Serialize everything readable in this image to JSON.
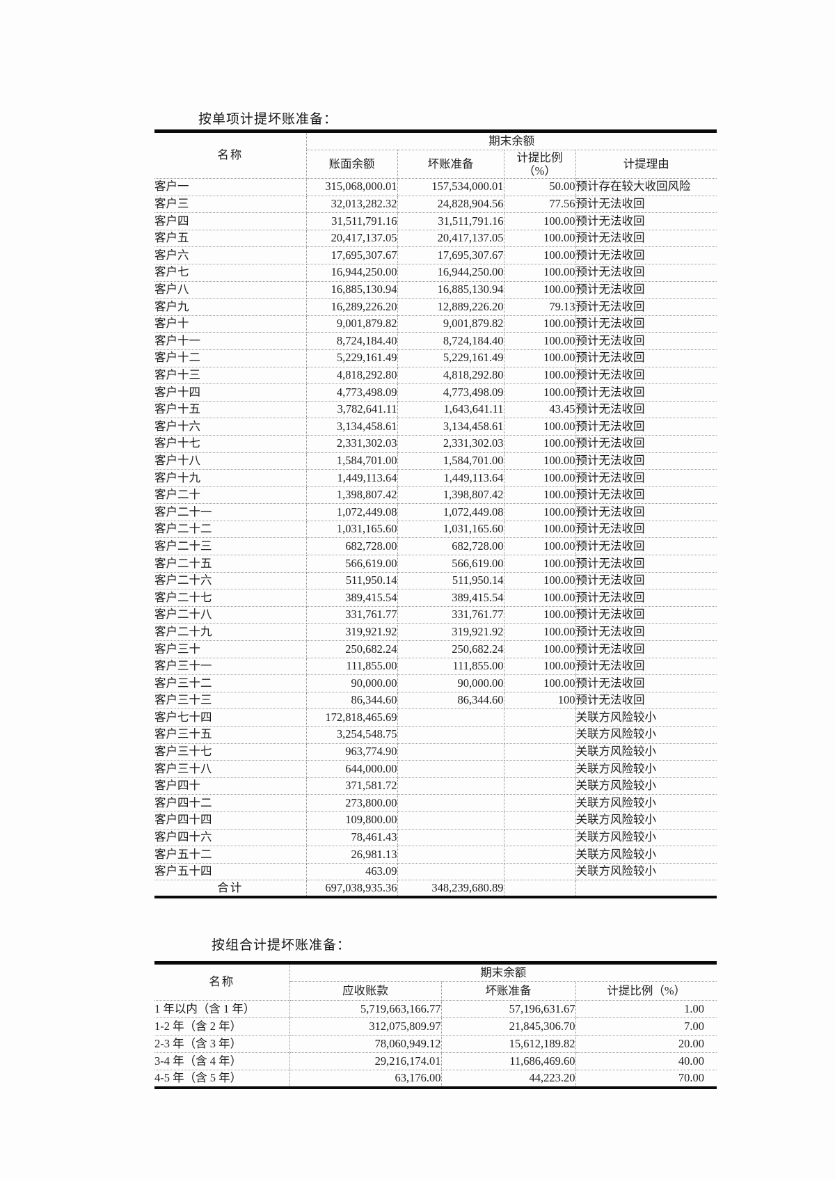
{
  "table1": {
    "title": "按单项计提坏账准备：",
    "header": {
      "name": "名称",
      "period_group": "期末余额",
      "book_balance": "账面余额",
      "bad_debt": "坏账准备",
      "ratio_label": "计提比例",
      "ratio_unit": "（%）",
      "reason": "计提理由"
    },
    "rows": [
      {
        "name": "客户一",
        "book": "315,068,000.01",
        "bad": "157,534,000.01",
        "ratio": "50.00",
        "reason": "预计存在较大收回风险"
      },
      {
        "name": "客户三",
        "book": "32,013,282.32",
        "bad": "24,828,904.56",
        "ratio": "77.56",
        "reason": "预计无法收回"
      },
      {
        "name": "客户四",
        "book": "31,511,791.16",
        "bad": "31,511,791.16",
        "ratio": "100.00",
        "reason": "预计无法收回"
      },
      {
        "name": "客户五",
        "book": "20,417,137.05",
        "bad": "20,417,137.05",
        "ratio": "100.00",
        "reason": "预计无法收回"
      },
      {
        "name": "客户六",
        "book": "17,695,307.67",
        "bad": "17,695,307.67",
        "ratio": "100.00",
        "reason": "预计无法收回"
      },
      {
        "name": "客户七",
        "book": "16,944,250.00",
        "bad": "16,944,250.00",
        "ratio": "100.00",
        "reason": "预计无法收回"
      },
      {
        "name": "客户八",
        "book": "16,885,130.94",
        "bad": "16,885,130.94",
        "ratio": "100.00",
        "reason": "预计无法收回"
      },
      {
        "name": "客户九",
        "book": "16,289,226.20",
        "bad": "12,889,226.20",
        "ratio": "79.13",
        "reason": "预计无法收回"
      },
      {
        "name": "客户十",
        "book": "9,001,879.82",
        "bad": "9,001,879.82",
        "ratio": "100.00",
        "reason": "预计无法收回"
      },
      {
        "name": "客户十一",
        "book": "8,724,184.40",
        "bad": "8,724,184.40",
        "ratio": "100.00",
        "reason": "预计无法收回"
      },
      {
        "name": "客户十二",
        "book": "5,229,161.49",
        "bad": "5,229,161.49",
        "ratio": "100.00",
        "reason": "预计无法收回"
      },
      {
        "name": "客户十三",
        "book": "4,818,292.80",
        "bad": "4,818,292.80",
        "ratio": "100.00",
        "reason": "预计无法收回"
      },
      {
        "name": "客户十四",
        "book": "4,773,498.09",
        "bad": "4,773,498.09",
        "ratio": "100.00",
        "reason": "预计无法收回"
      },
      {
        "name": "客户十五",
        "book": "3,782,641.11",
        "bad": "1,643,641.11",
        "ratio": "43.45",
        "reason": "预计无法收回"
      },
      {
        "name": "客户十六",
        "book": "3,134,458.61",
        "bad": "3,134,458.61",
        "ratio": "100.00",
        "reason": "预计无法收回"
      },
      {
        "name": "客户十七",
        "book": "2,331,302.03",
        "bad": "2,331,302.03",
        "ratio": "100.00",
        "reason": "预计无法收回"
      },
      {
        "name": "客户十八",
        "book": "1,584,701.00",
        "bad": "1,584,701.00",
        "ratio": "100.00",
        "reason": "预计无法收回"
      },
      {
        "name": "客户十九",
        "book": "1,449,113.64",
        "bad": "1,449,113.64",
        "ratio": "100.00",
        "reason": "预计无法收回"
      },
      {
        "name": "客户二十",
        "book": "1,398,807.42",
        "bad": "1,398,807.42",
        "ratio": "100.00",
        "reason": "预计无法收回"
      },
      {
        "name": "客户二十一",
        "book": "1,072,449.08",
        "bad": "1,072,449.08",
        "ratio": "100.00",
        "reason": "预计无法收回"
      },
      {
        "name": "客户二十二",
        "book": "1,031,165.60",
        "bad": "1,031,165.60",
        "ratio": "100.00",
        "reason": "预计无法收回"
      },
      {
        "name": "客户二十三",
        "book": "682,728.00",
        "bad": "682,728.00",
        "ratio": "100.00",
        "reason": "预计无法收回"
      },
      {
        "name": "客户二十五",
        "book": "566,619.00",
        "bad": "566,619.00",
        "ratio": "100.00",
        "reason": "预计无法收回"
      },
      {
        "name": "客户二十六",
        "book": "511,950.14",
        "bad": "511,950.14",
        "ratio": "100.00",
        "reason": "预计无法收回"
      },
      {
        "name": "客户二十七",
        "book": "389,415.54",
        "bad": "389,415.54",
        "ratio": "100.00",
        "reason": "预计无法收回"
      },
      {
        "name": "客户二十八",
        "book": "331,761.77",
        "bad": "331,761.77",
        "ratio": "100.00",
        "reason": "预计无法收回"
      },
      {
        "name": "客户二十九",
        "book": "319,921.92",
        "bad": "319,921.92",
        "ratio": "100.00",
        "reason": "预计无法收回"
      },
      {
        "name": "客户三十",
        "book": "250,682.24",
        "bad": "250,682.24",
        "ratio": "100.00",
        "reason": "预计无法收回"
      },
      {
        "name": "客户三十一",
        "book": "111,855.00",
        "bad": "111,855.00",
        "ratio": "100.00",
        "reason": "预计无法收回"
      },
      {
        "name": "客户三十二",
        "book": "90,000.00",
        "bad": "90,000.00",
        "ratio": "100.00",
        "reason": "预计无法收回"
      },
      {
        "name": "客户三十三",
        "book": "86,344.60",
        "bad": "86,344.60",
        "ratio": "100",
        "reason": "预计无法收回"
      },
      {
        "name": "客户七十四",
        "book": "172,818,465.69",
        "bad": "",
        "ratio": "",
        "reason": "关联方风险较小"
      },
      {
        "name": "客户三十五",
        "book": "3,254,548.75",
        "bad": "",
        "ratio": "",
        "reason": "关联方风险较小"
      },
      {
        "name": "客户三十七",
        "book": "963,774.90",
        "bad": "",
        "ratio": "",
        "reason": "关联方风险较小"
      },
      {
        "name": "客户三十八",
        "book": "644,000.00",
        "bad": "",
        "ratio": "",
        "reason": "关联方风险较小"
      },
      {
        "name": "客户四十",
        "book": "371,581.72",
        "bad": "",
        "ratio": "",
        "reason": "关联方风险较小"
      },
      {
        "name": "客户四十二",
        "book": "273,800.00",
        "bad": "",
        "ratio": "",
        "reason": "关联方风险较小"
      },
      {
        "name": "客户四十四",
        "book": "109,800.00",
        "bad": "",
        "ratio": "",
        "reason": "关联方风险较小"
      },
      {
        "name": "客户四十六",
        "book": "78,461.43",
        "bad": "",
        "ratio": "",
        "reason": "关联方风险较小"
      },
      {
        "name": "客户五十二",
        "book": "26,981.13",
        "bad": "",
        "ratio": "",
        "reason": "关联方风险较小"
      },
      {
        "name": "客户五十四",
        "book": "463.09",
        "bad": "",
        "ratio": "",
        "reason": "关联方风险较小"
      }
    ],
    "total": {
      "name": "合计",
      "book": "697,038,935.36",
      "bad": "348,239,680.89",
      "ratio": "",
      "reason": ""
    }
  },
  "table2": {
    "title": "按组合计提坏账准备：",
    "header": {
      "name": "名称",
      "period_group": "期末余额",
      "receivable": "应收账款",
      "bad_debt": "坏账准备",
      "ratio": "计提比例（%）"
    },
    "rows": [
      {
        "name": "1 年以内（含 1 年）",
        "receivable": "5,719,663,166.77",
        "bad": "57,196,631.67",
        "ratio": "1.00"
      },
      {
        "name": "1-2 年（含 2 年）",
        "receivable": "312,075,809.97",
        "bad": "21,845,306.70",
        "ratio": "7.00"
      },
      {
        "name": "2-3 年（含 3 年）",
        "receivable": "78,060,949.12",
        "bad": "15,612,189.82",
        "ratio": "20.00"
      },
      {
        "name": "3-4 年（含 4 年）",
        "receivable": "29,216,174.01",
        "bad": "11,686,469.60",
        "ratio": "40.00"
      },
      {
        "name": "4-5 年（含 5 年）",
        "receivable": "63,176.00",
        "bad": "44,223.20",
        "ratio": "70.00"
      }
    ]
  }
}
